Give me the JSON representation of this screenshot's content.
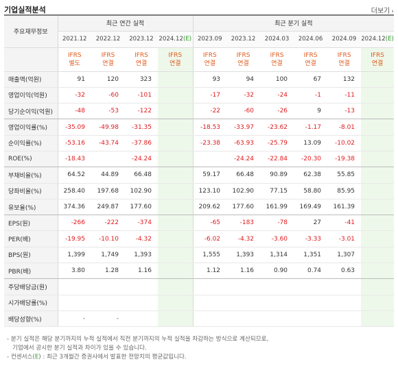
{
  "header": {
    "title": "기업실적분석",
    "more_label": "더보기"
  },
  "table": {
    "corner_label": "주요재무정보",
    "group_annual": "최근 연간 실적",
    "group_quarterly": "최근 분기 실적",
    "periods": [
      {
        "label": "2021.12",
        "estimate": false
      },
      {
        "label": "2022.12",
        "estimate": false
      },
      {
        "label": "2023.12",
        "estimate": false
      },
      {
        "label": "2024.12",
        "estimate": true
      },
      {
        "label": "2023.09",
        "estimate": false
      },
      {
        "label": "2023.12",
        "estimate": false
      },
      {
        "label": "2024.03",
        "estimate": false
      },
      {
        "label": "2024.06",
        "estimate": false
      },
      {
        "label": "2024.09",
        "estimate": false
      },
      {
        "label": "2024.12",
        "estimate": true
      }
    ],
    "estimate_mark": "(E)",
    "basis": [
      [
        "IFRS",
        "별도"
      ],
      [
        "IFRS",
        "연결"
      ],
      [
        "IFRS",
        "연결"
      ],
      [
        "IFRS",
        "연결"
      ],
      [
        "IFRS",
        "연결"
      ],
      [
        "IFRS",
        "연결"
      ],
      [
        "IFRS",
        "연결"
      ],
      [
        "IFRS",
        "연결"
      ],
      [
        "IFRS",
        "연결"
      ],
      [
        "IFRS",
        "연결"
      ]
    ],
    "rows": [
      {
        "label": "매출액(억원)",
        "values": [
          "91",
          "120",
          "323",
          "",
          "93",
          "94",
          "100",
          "67",
          "132",
          ""
        ]
      },
      {
        "label": "영업이익(억원)",
        "values": [
          "-32",
          "-60",
          "-101",
          "",
          "-17",
          "-32",
          "-24",
          "-1",
          "-11",
          ""
        ]
      },
      {
        "label": "당기순이익(억원)",
        "values": [
          "-48",
          "-53",
          "-122",
          "",
          "-22",
          "-60",
          "-26",
          "9",
          "-13",
          ""
        ]
      },
      {
        "label": "영업이익률(%)",
        "values": [
          "-35.09",
          "-49.98",
          "-31.35",
          "",
          "-18.53",
          "-33.97",
          "-23.62",
          "-1.17",
          "-8.01",
          ""
        ]
      },
      {
        "label": "순이익률(%)",
        "values": [
          "-53.16",
          "-43.74",
          "-37.86",
          "",
          "-23.38",
          "-63.93",
          "-25.79",
          "13.09",
          "-10.02",
          ""
        ]
      },
      {
        "label": "ROE(%)",
        "values": [
          "-18.43",
          "",
          "-24.24",
          "",
          "",
          "-24.24",
          "-22.84",
          "-20.30",
          "-19.38",
          ""
        ]
      },
      {
        "label": "부채비율(%)",
        "values": [
          "64.52",
          "44.89",
          "66.48",
          "",
          "59.17",
          "66.48",
          "90.89",
          "62.38",
          "55.85",
          ""
        ]
      },
      {
        "label": "당좌비율(%)",
        "values": [
          "258.40",
          "197.68",
          "102.90",
          "",
          "123.10",
          "102.90",
          "77.15",
          "58.80",
          "85.95",
          ""
        ]
      },
      {
        "label": "유보율(%)",
        "values": [
          "374.36",
          "249.87",
          "177.60",
          "",
          "209.62",
          "177.60",
          "161.99",
          "169.49",
          "161.39",
          ""
        ]
      },
      {
        "label": "EPS(원)",
        "values": [
          "-266",
          "-222",
          "-374",
          "",
          "-65",
          "-183",
          "-78",
          "27",
          "-41",
          ""
        ]
      },
      {
        "label": "PER(배)",
        "values": [
          "-19.95",
          "-10.10",
          "-4.32",
          "",
          "-6.02",
          "-4.32",
          "-3.60",
          "-3.33",
          "-3.01",
          ""
        ]
      },
      {
        "label": "BPS(원)",
        "values": [
          "1,399",
          "1,749",
          "1,393",
          "",
          "1,555",
          "1,393",
          "1,314",
          "1,351",
          "1,307",
          ""
        ]
      },
      {
        "label": "PBR(배)",
        "values": [
          "3.80",
          "1.28",
          "1.16",
          "",
          "1.12",
          "1.16",
          "0.90",
          "0.74",
          "0.63",
          ""
        ]
      },
      {
        "label": "주당배당금(원)",
        "values": [
          "",
          "",
          "",
          "",
          "",
          "",
          "",
          "",
          "",
          ""
        ]
      },
      {
        "label": "시가배당률(%)",
        "values": [
          "",
          "",
          "",
          "",
          "",
          "",
          "",
          "",
          "",
          ""
        ]
      },
      {
        "label": "배당성향(%)",
        "values": [
          "-",
          "-",
          "",
          "",
          "",
          "",
          "",
          "",
          "",
          ""
        ]
      }
    ]
  },
  "notes": {
    "line1": "- 분기 실적은 해당 분기까지의 누적 실적에서 직전 분기까지의 누적 실적을 차감하는 방식으로 계산되므로,",
    "line2": "기업에서 공시한 분기 실적과 차이가 있을 수 있습니다.",
    "line3_prefix": "- 컨센서스(",
    "line3_mark": "E",
    "line3_suffix": ") : 최근 3개월간 증권사에서 발표한 전망치의 평균값입니다."
  }
}
